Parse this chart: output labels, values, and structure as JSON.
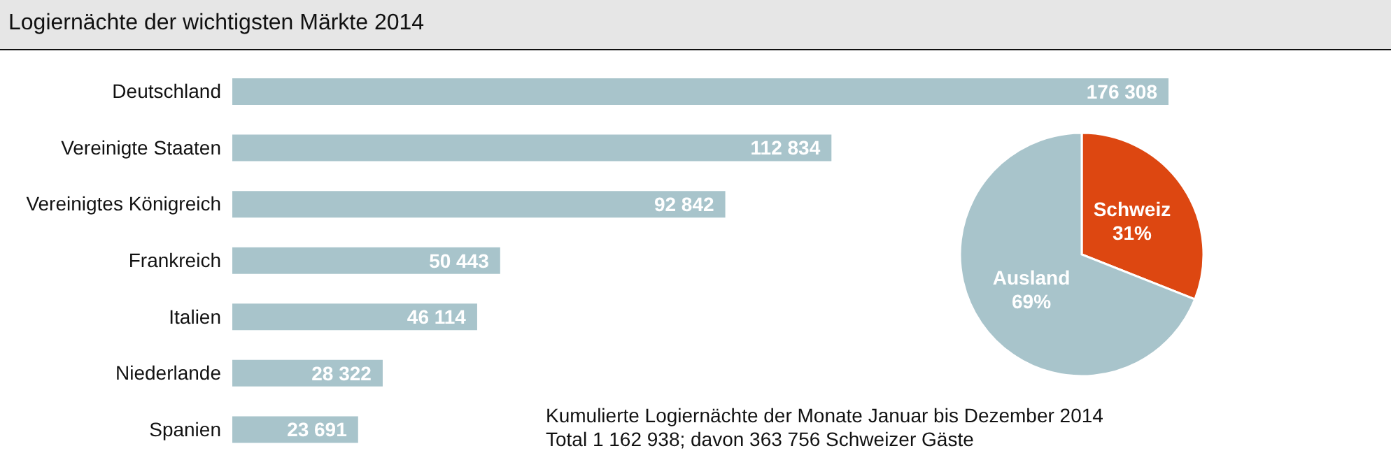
{
  "chart_data": [
    {
      "type": "bar",
      "orientation": "horizontal",
      "title": "Logiernächte der wichtigsten Märkte 2014",
      "categories": [
        "Deutschland",
        "Vereinigte Staaten",
        "Vereinigtes Königreich",
        "Frankreich",
        "Italien",
        "Niederlande",
        "Spanien"
      ],
      "values": [
        176308,
        112834,
        92842,
        50443,
        46114,
        28322,
        23691
      ],
      "value_labels": [
        "176 308",
        "112 834",
        "92 842",
        "50 443",
        "46 114",
        "28 322",
        "23 691"
      ],
      "color": "#a8c4cb",
      "annotations": [
        "Kumulierte Logiernächte der Monate Januar bis Dezember 2014",
        "Total 1 162 938; davon 363 756 Schweizer Gäste"
      ]
    },
    {
      "type": "pie",
      "categories": [
        "Schweiz",
        "Ausland"
      ],
      "values": [
        31,
        69
      ],
      "value_labels": [
        "31%",
        "69%"
      ],
      "colors": [
        "#dd4711",
        "#a8c4cb"
      ]
    }
  ]
}
